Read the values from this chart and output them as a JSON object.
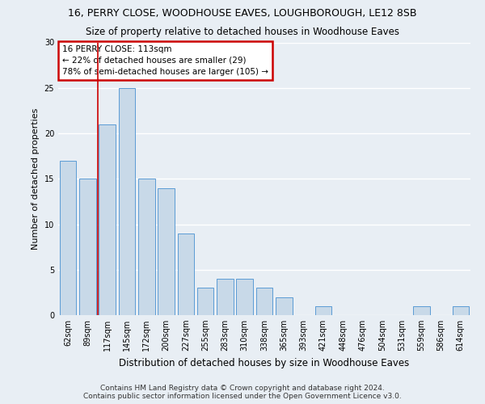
{
  "title1": "16, PERRY CLOSE, WOODHOUSE EAVES, LOUGHBOROUGH, LE12 8SB",
  "title2": "Size of property relative to detached houses in Woodhouse Eaves",
  "xlabel": "Distribution of detached houses by size in Woodhouse Eaves",
  "ylabel": "Number of detached properties",
  "footer1": "Contains HM Land Registry data © Crown copyright and database right 2024.",
  "footer2": "Contains public sector information licensed under the Open Government Licence v3.0.",
  "categories": [
    "62sqm",
    "89sqm",
    "117sqm",
    "145sqm",
    "172sqm",
    "200sqm",
    "227sqm",
    "255sqm",
    "283sqm",
    "310sqm",
    "338sqm",
    "365sqm",
    "393sqm",
    "421sqm",
    "448sqm",
    "476sqm",
    "504sqm",
    "531sqm",
    "559sqm",
    "586sqm",
    "614sqm"
  ],
  "values": [
    17,
    15,
    21,
    25,
    15,
    14,
    9,
    3,
    4,
    4,
    3,
    2,
    0,
    1,
    0,
    0,
    0,
    0,
    1,
    0,
    1
  ],
  "bar_color": "#c8d9e8",
  "bar_edge_color": "#5b9bd5",
  "red_line_x": 1.5,
  "annotation_text": "16 PERRY CLOSE: 113sqm\n← 22% of detached houses are smaller (29)\n78% of semi-detached houses are larger (105) →",
  "annotation_box_color": "#ffffff",
  "annotation_edge_color": "#cc0000",
  "ylim": [
    0,
    30
  ],
  "yticks": [
    0,
    5,
    10,
    15,
    20,
    25,
    30
  ],
  "bg_color": "#e8eef4",
  "grid_color": "#ffffff",
  "title1_fontsize": 9,
  "title2_fontsize": 8.5,
  "xlabel_fontsize": 8.5,
  "ylabel_fontsize": 8,
  "footer_fontsize": 6.5,
  "tick_fontsize": 7
}
